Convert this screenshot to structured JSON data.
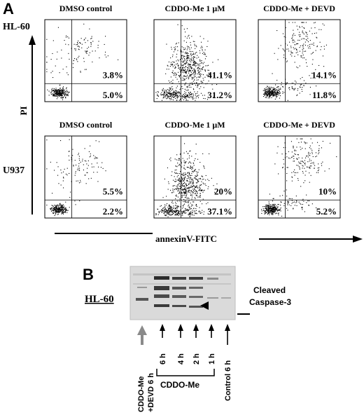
{
  "panel_a": {
    "letter": "A",
    "y_axis_label": "PI",
    "x_axis_label": "annexinV-FITC",
    "rows": [
      {
        "cell_line": "HL-60",
        "plots": [
          {
            "title": "DMSO control",
            "upper_right": "3.8%",
            "lower_right": "5.0%",
            "profile": "control"
          },
          {
            "title": "CDDO-Me 1 μM",
            "upper_right": "41.1%",
            "lower_right": "31.2%",
            "profile": "treated"
          },
          {
            "title": "CDDO-Me + DEVD",
            "upper_right": "14.1%",
            "lower_right": "11.8%",
            "profile": "inhibited"
          }
        ]
      },
      {
        "cell_line": "U937",
        "plots": [
          {
            "title": "DMSO control",
            "upper_right": "5.5%",
            "lower_right": "2.2%",
            "profile": "control"
          },
          {
            "title": "CDDO-Me 1 μM",
            "upper_right": "20%",
            "lower_right": "37.1%",
            "profile": "treated"
          },
          {
            "title": "CDDO-Me + DEVD",
            "upper_right": "10%",
            "lower_right": "5.2%",
            "profile": "inhibited"
          }
        ]
      }
    ]
  },
  "panel_b": {
    "letter": "B",
    "cell_line": "HL-60",
    "band_label": [
      "Cleaved",
      "Caspase-3"
    ],
    "lanes": [
      "CDDO-Me +DEVD 6 h",
      "6 h",
      "4 h",
      "2 h",
      "1 h",
      "Control 6 h"
    ],
    "lane_label_lines": [
      [
        "CDDO-Me",
        "+DEVD 6 h"
      ],
      [
        "6 h"
      ],
      [
        "4 h"
      ],
      [
        "2 h"
      ],
      [
        "1 h"
      ],
      [
        "Control 6 h"
      ]
    ],
    "group_label": "CDDO-Me",
    "colors": {
      "highlight_arrow": "#8a8a8a",
      "arrow": "#000000"
    }
  }
}
